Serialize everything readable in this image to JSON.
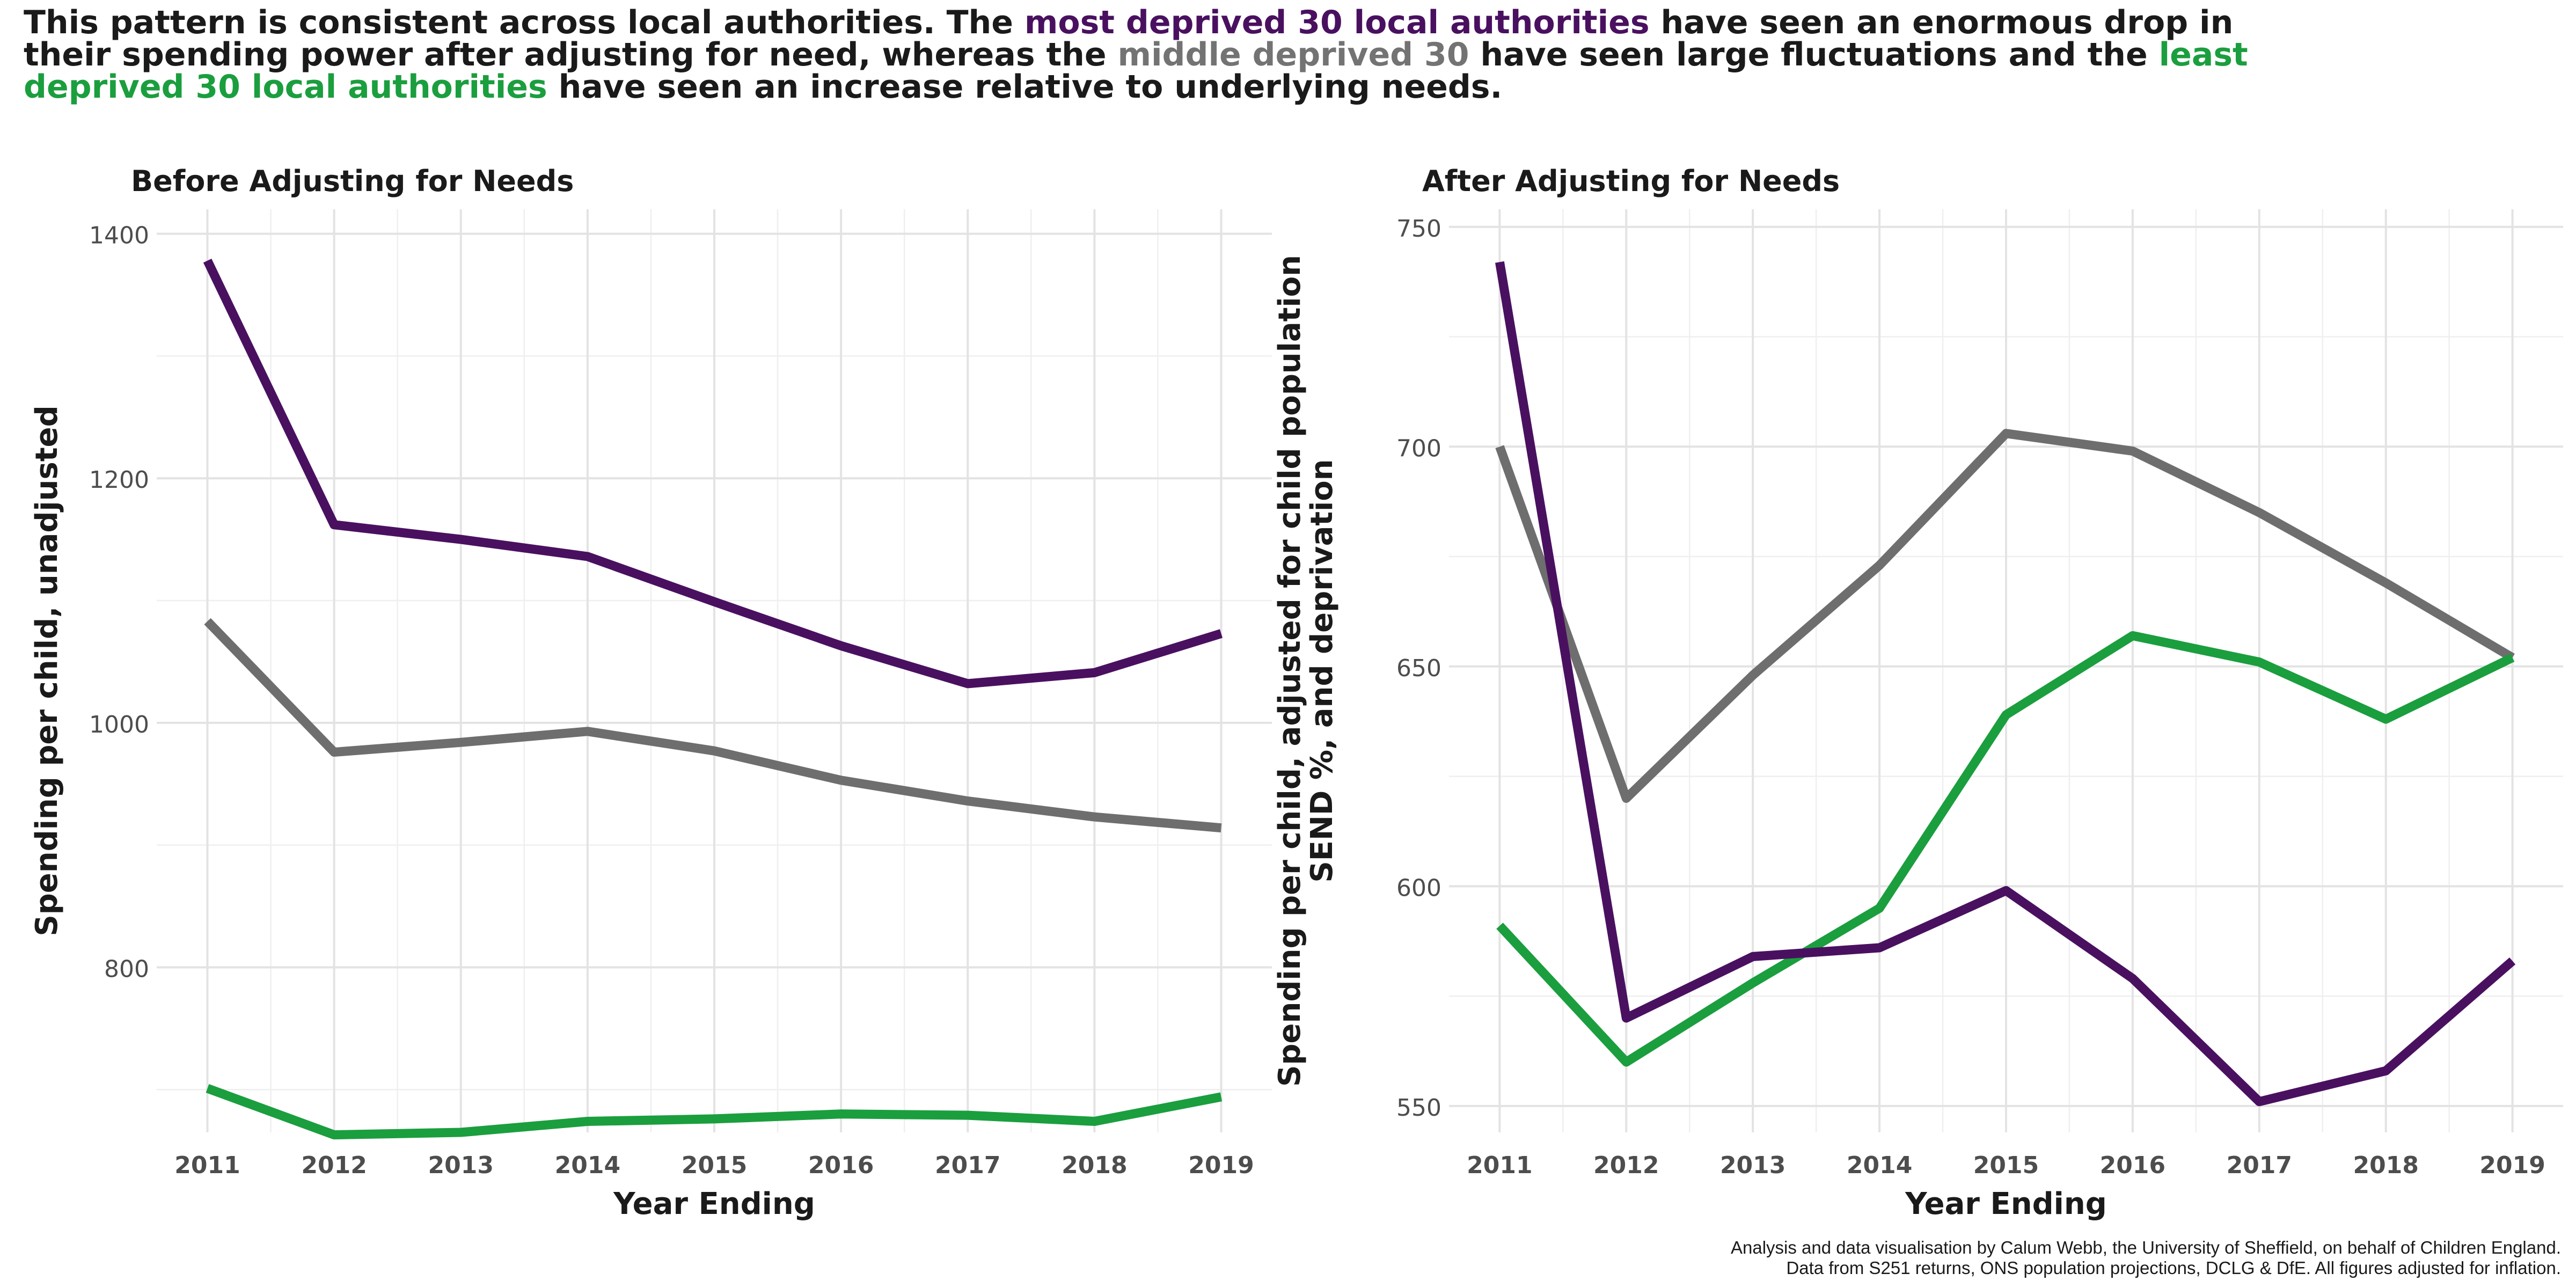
{
  "headline": {
    "part1": "This pattern is consistent across local authorities. The ",
    "most": "most deprived 30 local authorities",
    "part2": " have seen an enormous drop in their spending power after adjusting for need, whereas the ",
    "middle": "middle deprived 30",
    "part3": " have seen large fluctuations and the ",
    "least": "least deprived 30 local authorities",
    "part4": " have seen an increase relative to underlying needs."
  },
  "colors": {
    "most": "#4a1060",
    "middle": "#6e6e6e",
    "least": "#1b9e3e"
  },
  "caption": {
    "line1": "Analysis and data visualisation by Calum Webb, the University of Sheffield, on behalf of Children England.",
    "line2": "Data from S251 returns, ONS population projections, DCLG & DfE. All figures adjusted for inflation."
  },
  "chart_data": [
    {
      "type": "line",
      "title": "Before Adjusting for Needs",
      "xlabel": "Year Ending",
      "ylabel": "Spending per child, unadjusted",
      "x": [
        2011,
        2012,
        2013,
        2014,
        2015,
        2016,
        2017,
        2018,
        2019
      ],
      "xlim": [
        2010.6,
        2019.4
      ],
      "ylim": [
        665,
        1420
      ],
      "yticks": [
        800,
        1000,
        1200,
        1400
      ],
      "grid": true,
      "series": [
        {
          "key": "middle",
          "values": [
            1083,
            976,
            984,
            993,
            977,
            953,
            936,
            923,
            914
          ]
        },
        {
          "key": "least",
          "values": [
            701,
            663,
            665,
            674,
            676,
            680,
            679,
            674,
            694
          ]
        },
        {
          "key": "most",
          "values": [
            1378,
            1162,
            1150,
            1136,
            1099,
            1063,
            1032,
            1041,
            1073
          ]
        }
      ]
    },
    {
      "type": "line",
      "title": "After Adjusting for Needs",
      "xlabel": "Year Ending",
      "ylabel": "Spending per child, adjusted for child population SEND %, and deprivation",
      "ylabel_lines": [
        "Spending per child, adjusted for child population",
        "SEND %, and deprivation"
      ],
      "x": [
        2011,
        2012,
        2013,
        2014,
        2015,
        2016,
        2017,
        2018,
        2019
      ],
      "xlim": [
        2010.6,
        2019.4
      ],
      "ylim": [
        544,
        754
      ],
      "yticks": [
        550,
        600,
        650,
        700,
        750
      ],
      "grid": true,
      "series": [
        {
          "key": "middle",
          "values": [
            700,
            620,
            648,
            673,
            703,
            699,
            685,
            669,
            652
          ]
        },
        {
          "key": "least",
          "values": [
            591,
            560,
            578,
            595,
            639,
            657,
            651,
            638,
            652
          ]
        },
        {
          "key": "most",
          "values": [
            742,
            570,
            584,
            586,
            599,
            579,
            551,
            558,
            583
          ]
        }
      ]
    }
  ]
}
